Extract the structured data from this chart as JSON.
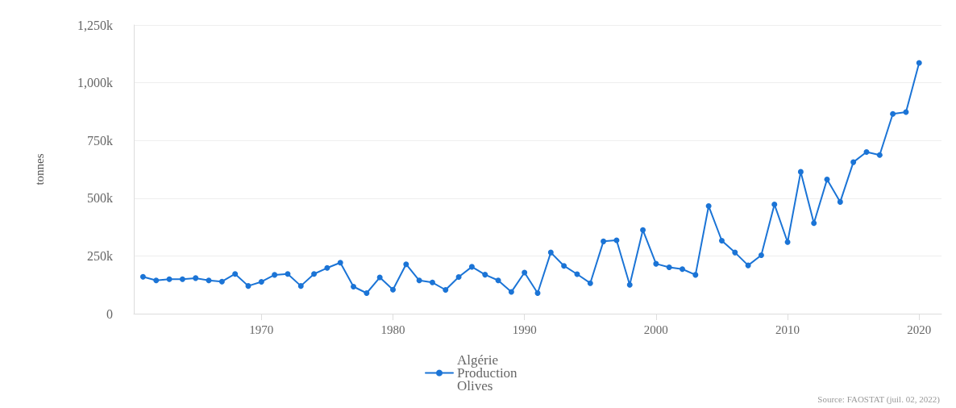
{
  "chart_data": {
    "type": "line",
    "ylabel": "tonnes",
    "x": [
      1961,
      1962,
      1963,
      1964,
      1965,
      1966,
      1967,
      1968,
      1969,
      1970,
      1971,
      1972,
      1973,
      1974,
      1975,
      1976,
      1977,
      1978,
      1979,
      1980,
      1981,
      1982,
      1983,
      1984,
      1985,
      1986,
      1987,
      1988,
      1989,
      1990,
      1991,
      1992,
      1993,
      1994,
      1995,
      1996,
      1997,
      1998,
      1999,
      2000,
      2001,
      2002,
      2003,
      2004,
      2005,
      2006,
      2007,
      2008,
      2009,
      2010,
      2011,
      2012,
      2013,
      2014,
      2015,
      2016,
      2017,
      2018,
      2019,
      2020
    ],
    "series": [
      {
        "name": "Algérie Production Olives",
        "color": "#1b74d6",
        "values": [
          160000,
          144000,
          149000,
          149000,
          154000,
          144000,
          139000,
          172000,
          120000,
          138000,
          168000,
          172000,
          120000,
          172000,
          198000,
          221000,
          117000,
          89000,
          157000,
          104000,
          214000,
          144000,
          135000,
          103000,
          159000,
          203000,
          169000,
          144000,
          94000,
          178000,
          89000,
          265000,
          207000,
          171000,
          132000,
          313000,
          318000,
          125000,
          362000,
          216000,
          201000,
          193000,
          168000,
          466000,
          316000,
          265000,
          209000,
          253000,
          473000,
          310000,
          614000,
          392000,
          581000,
          484000,
          656000,
          700000,
          687000,
          865000,
          873000,
          1086000
        ]
      }
    ],
    "xlim": [
      1960.3,
      2021.7
    ],
    "xticks": [
      1970,
      1980,
      1990,
      2000,
      2010,
      2020
    ],
    "ylim": [
      0,
      1250000
    ],
    "yticks": [
      {
        "value": 0,
        "label": "0"
      },
      {
        "value": 250000,
        "label": "250k"
      },
      {
        "value": 500000,
        "label": "500k"
      },
      {
        "value": 750000,
        "label": "750k"
      },
      {
        "value": 1000000,
        "label": "1,000k"
      },
      {
        "value": 1250000,
        "label": "1,250k"
      }
    ],
    "grid": "y",
    "legend": "bottom",
    "marker": "circle",
    "line_style": "solid",
    "annotations": [
      "Source: FAOSTAT (juil. 02, 2022)"
    ]
  }
}
